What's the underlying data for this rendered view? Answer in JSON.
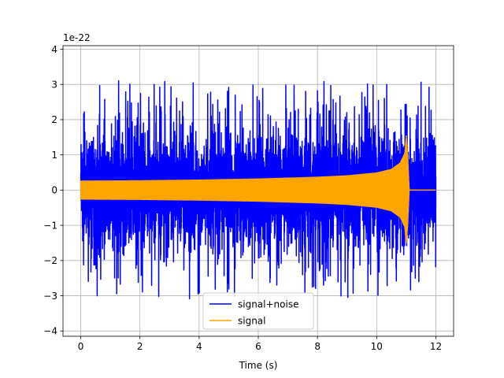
{
  "chart_data": {
    "type": "line",
    "title": "",
    "xlabel": "Time (s)",
    "ylabel": "",
    "y_offset_text": "1e-22",
    "xlim": [
      -0.6,
      12.6
    ],
    "ylim": [
      -4.15,
      4.1
    ],
    "x_ticks": [
      0,
      2,
      4,
      6,
      8,
      10,
      12
    ],
    "x_tick_labels": [
      "0",
      "2",
      "4",
      "6",
      "8",
      "10",
      "12"
    ],
    "y_ticks": [
      -4,
      -3,
      -2,
      -1,
      0,
      1,
      2,
      3,
      4
    ],
    "y_tick_labels": [
      "−4",
      "−3",
      "−2",
      "−1",
      "0",
      "1",
      "2",
      "3",
      "4"
    ],
    "y_scale_factor": "1e-22",
    "grid": true,
    "legend_position": "bottom-center",
    "series": [
      {
        "name": "signal+noise",
        "color": "#0000ff",
        "x_range": [
          0,
          12
        ],
        "core_envelope_approx": [
          1.2,
          -1.2
        ],
        "peak_min": -3.75,
        "peak_max": 3.52
      },
      {
        "name": "signal",
        "color": "#ffa500",
        "envelope": {
          "x": [
            0,
            2,
            4,
            6,
            8,
            9,
            10,
            10.5,
            10.8,
            10.95,
            11.0,
            11.05,
            11.1,
            12
          ],
          "amplitude": [
            0.27,
            0.28,
            0.3,
            0.33,
            0.38,
            0.42,
            0.5,
            0.6,
            0.78,
            1.05,
            1.55,
            1.0,
            0.0,
            0.0
          ]
        }
      }
    ]
  }
}
